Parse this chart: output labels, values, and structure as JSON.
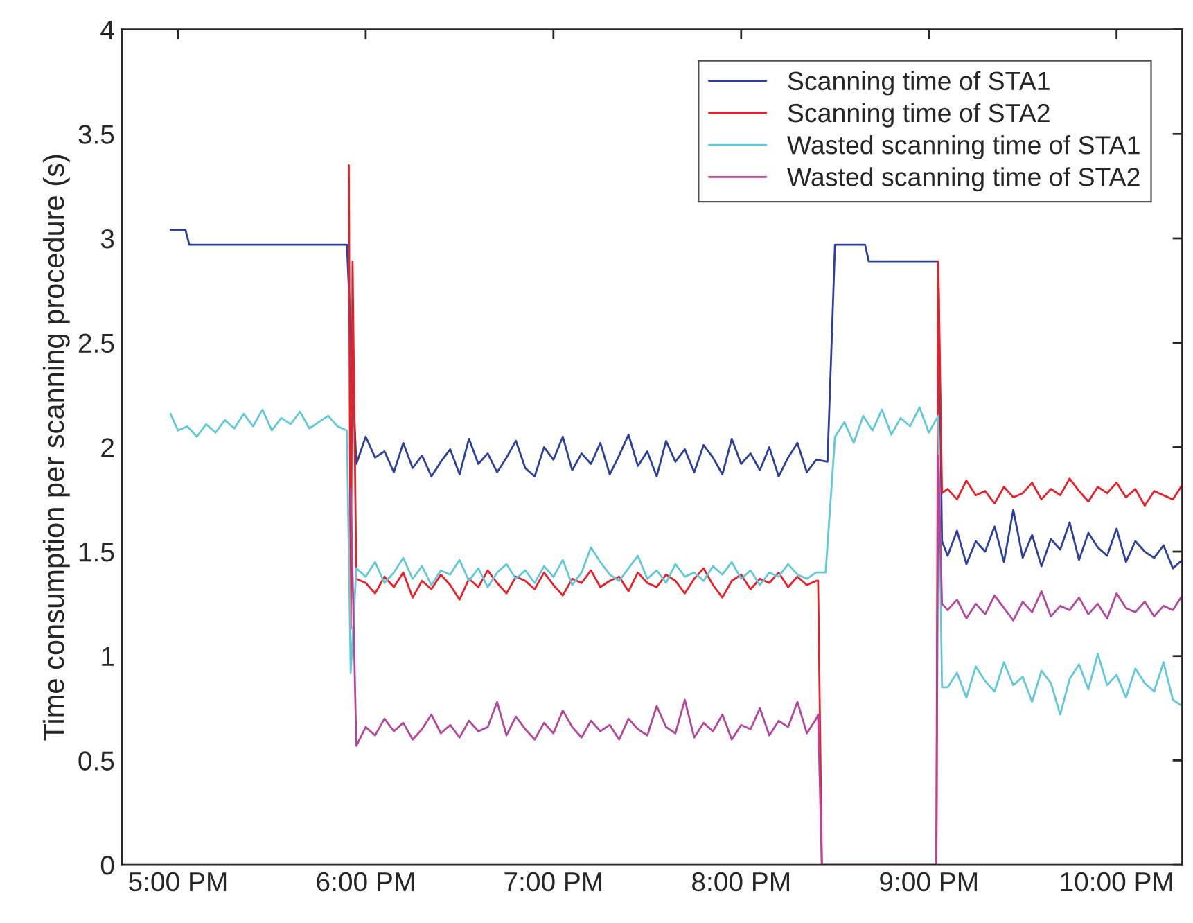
{
  "chart_data": {
    "type": "line",
    "ylabel": "Time consumption per scanning procedure (s)",
    "xlim": [
      16.7,
      22.35
    ],
    "xticks": [
      {
        "value": 17,
        "label": "5:00 PM"
      },
      {
        "value": 18,
        "label": "6:00 PM"
      },
      {
        "value": 19,
        "label": "7:00 PM"
      },
      {
        "value": 20,
        "label": "8:00 PM"
      },
      {
        "value": 21,
        "label": "9:00 PM"
      },
      {
        "value": 22,
        "label": "10:00 PM"
      }
    ],
    "ylim": [
      0,
      4
    ],
    "yticks": [
      0,
      0.5,
      1,
      1.5,
      2,
      2.5,
      3,
      3.5,
      4
    ],
    "grid": false,
    "legend": "top right",
    "line_style": "solid",
    "marker": "none",
    "series": [
      {
        "name": "Scanning time of STA1",
        "color": "#2b3f9e",
        "x": [
          16.96,
          17.04,
          17.06,
          17.9,
          17.95,
          18.0,
          18.05,
          18.1,
          18.15,
          18.2,
          18.25,
          18.3,
          18.35,
          18.4,
          18.45,
          18.5,
          18.55,
          18.6,
          18.65,
          18.7,
          18.75,
          18.8,
          18.85,
          18.9,
          18.95,
          19.0,
          19.05,
          19.1,
          19.15,
          19.2,
          19.25,
          19.3,
          19.35,
          19.4,
          19.45,
          19.5,
          19.55,
          19.6,
          19.65,
          19.7,
          19.75,
          19.8,
          19.85,
          19.9,
          19.95,
          20.0,
          20.05,
          20.1,
          20.15,
          20.2,
          20.25,
          20.3,
          20.35,
          20.4,
          20.46,
          20.5,
          20.66,
          20.68,
          21.05,
          21.07,
          21.1,
          21.15,
          21.2,
          21.25,
          21.3,
          21.35,
          21.4,
          21.45,
          21.5,
          21.55,
          21.6,
          21.65,
          21.7,
          21.75,
          21.8,
          21.85,
          21.9,
          21.95,
          22.0,
          22.05,
          22.1,
          22.15,
          22.2,
          22.25,
          22.3,
          22.35
        ],
        "values": [
          3.04,
          3.04,
          2.97,
          2.97,
          1.92,
          2.05,
          1.95,
          1.98,
          1.88,
          2.02,
          1.9,
          1.96,
          1.86,
          1.93,
          1.99,
          1.87,
          2.04,
          1.92,
          1.97,
          1.88,
          1.95,
          2.03,
          1.9,
          1.86,
          2.0,
          1.94,
          2.05,
          1.89,
          1.97,
          1.92,
          2.02,
          1.87,
          1.96,
          2.06,
          1.91,
          1.98,
          1.86,
          2.03,
          1.93,
          1.99,
          1.88,
          2.01,
          1.95,
          1.87,
          2.04,
          1.92,
          1.97,
          1.89,
          2.0,
          1.86,
          1.95,
          2.02,
          1.88,
          1.94,
          1.93,
          2.97,
          2.97,
          2.89,
          2.89,
          1.55,
          1.48,
          1.6,
          1.44,
          1.55,
          1.5,
          1.62,
          1.45,
          1.7,
          1.47,
          1.58,
          1.43,
          1.56,
          1.51,
          1.64,
          1.46,
          1.59,
          1.52,
          1.48,
          1.61,
          1.45,
          1.55,
          1.5,
          1.47,
          1.53,
          1.42,
          1.46
        ]
      },
      {
        "name": "Scanning time of STA2",
        "color": "#ee1c25",
        "x": [
          17.91,
          17.92,
          17.93,
          17.95,
          18.0,
          18.05,
          18.1,
          18.15,
          18.2,
          18.25,
          18.3,
          18.35,
          18.4,
          18.45,
          18.5,
          18.55,
          18.6,
          18.65,
          18.7,
          18.75,
          18.8,
          18.85,
          18.9,
          18.95,
          19.0,
          19.05,
          19.1,
          19.15,
          19.2,
          19.25,
          19.3,
          19.35,
          19.4,
          19.45,
          19.5,
          19.55,
          19.6,
          19.65,
          19.7,
          19.75,
          19.8,
          19.85,
          19.9,
          19.95,
          20.0,
          20.05,
          20.1,
          20.15,
          20.2,
          20.25,
          20.3,
          20.35,
          20.4,
          20.41,
          20.43,
          21.04,
          21.05,
          21.07,
          21.1,
          21.15,
          21.2,
          21.25,
          21.3,
          21.35,
          21.4,
          21.45,
          21.5,
          21.55,
          21.6,
          21.65,
          21.7,
          21.75,
          21.8,
          21.85,
          21.9,
          21.95,
          22.0,
          22.05,
          22.1,
          22.15,
          22.2,
          22.25,
          22.3,
          22.35
        ],
        "values": [
          3.35,
          1.13,
          2.89,
          1.37,
          1.35,
          1.3,
          1.38,
          1.33,
          1.4,
          1.28,
          1.36,
          1.32,
          1.39,
          1.34,
          1.27,
          1.37,
          1.33,
          1.41,
          1.35,
          1.3,
          1.38,
          1.36,
          1.32,
          1.4,
          1.34,
          1.29,
          1.37,
          1.35,
          1.41,
          1.33,
          1.36,
          1.38,
          1.31,
          1.4,
          1.35,
          1.33,
          1.39,
          1.36,
          1.3,
          1.37,
          1.42,
          1.34,
          1.28,
          1.36,
          1.39,
          1.32,
          1.37,
          1.35,
          1.4,
          1.33,
          1.38,
          1.34,
          1.36,
          1.36,
          0,
          0,
          2.89,
          1.78,
          1.8,
          1.75,
          1.84,
          1.77,
          1.79,
          1.73,
          1.81,
          1.76,
          1.78,
          1.83,
          1.75,
          1.8,
          1.77,
          1.85,
          1.79,
          1.74,
          1.81,
          1.78,
          1.83,
          1.76,
          1.8,
          1.72,
          1.79,
          1.77,
          1.75,
          1.82
        ]
      },
      {
        "name": "Wasted scanning time of STA1",
        "color": "#5fc8dc",
        "x": [
          16.96,
          17.0,
          17.05,
          17.1,
          17.15,
          17.2,
          17.25,
          17.3,
          17.35,
          17.4,
          17.45,
          17.5,
          17.55,
          17.6,
          17.65,
          17.7,
          17.75,
          17.8,
          17.85,
          17.9,
          17.92,
          17.95,
          18.0,
          18.05,
          18.1,
          18.15,
          18.2,
          18.25,
          18.3,
          18.35,
          18.4,
          18.45,
          18.5,
          18.55,
          18.6,
          18.65,
          18.7,
          18.75,
          18.8,
          18.85,
          18.9,
          18.95,
          19.0,
          19.05,
          19.1,
          19.15,
          19.2,
          19.25,
          19.3,
          19.35,
          19.4,
          19.45,
          19.5,
          19.55,
          19.6,
          19.65,
          19.7,
          19.75,
          19.8,
          19.85,
          19.9,
          19.95,
          20.0,
          20.05,
          20.1,
          20.15,
          20.2,
          20.25,
          20.3,
          20.35,
          20.4,
          20.45,
          20.5,
          20.55,
          20.6,
          20.65,
          20.7,
          20.75,
          20.8,
          20.85,
          20.9,
          20.95,
          21.0,
          21.05,
          21.07,
          21.1,
          21.15,
          21.2,
          21.25,
          21.3,
          21.35,
          21.4,
          21.45,
          21.5,
          21.55,
          21.6,
          21.65,
          21.7,
          21.75,
          21.8,
          21.85,
          21.9,
          21.95,
          22.0,
          22.05,
          22.1,
          22.15,
          22.2,
          22.25,
          22.3,
          22.35
        ],
        "values": [
          2.16,
          2.08,
          2.1,
          2.05,
          2.11,
          2.07,
          2.13,
          2.09,
          2.16,
          2.1,
          2.18,
          2.08,
          2.14,
          2.11,
          2.17,
          2.09,
          2.12,
          2.15,
          2.1,
          2.08,
          0.92,
          1.42,
          1.38,
          1.45,
          1.35,
          1.4,
          1.47,
          1.37,
          1.43,
          1.34,
          1.41,
          1.39,
          1.46,
          1.36,
          1.42,
          1.33,
          1.4,
          1.44,
          1.37,
          1.41,
          1.35,
          1.43,
          1.38,
          1.46,
          1.34,
          1.4,
          1.52,
          1.45,
          1.39,
          1.36,
          1.42,
          1.48,
          1.37,
          1.41,
          1.35,
          1.44,
          1.38,
          1.4,
          1.36,
          1.43,
          1.39,
          1.45,
          1.37,
          1.41,
          1.34,
          1.4,
          1.38,
          1.44,
          1.39,
          1.37,
          1.4,
          1.4,
          2.05,
          2.12,
          2.02,
          2.15,
          2.08,
          2.18,
          2.06,
          2.14,
          2.1,
          2.19,
          2.07,
          2.15,
          0.85,
          0.85,
          0.92,
          0.8,
          0.95,
          0.88,
          0.83,
          0.97,
          0.86,
          0.9,
          0.78,
          0.93,
          0.87,
          0.72,
          0.89,
          0.96,
          0.84,
          1.01,
          0.86,
          0.91,
          0.8,
          0.94,
          0.87,
          0.83,
          0.97,
          0.79,
          0.76
        ]
      },
      {
        "name": "Wasted scanning time of STA2",
        "color": "#b5449f",
        "x": [
          17.92,
          17.95,
          18.0,
          18.05,
          18.1,
          18.15,
          18.2,
          18.25,
          18.3,
          18.35,
          18.4,
          18.45,
          18.5,
          18.55,
          18.6,
          18.65,
          18.7,
          18.75,
          18.8,
          18.85,
          18.9,
          18.95,
          19.0,
          19.05,
          19.1,
          19.15,
          19.2,
          19.25,
          19.3,
          19.35,
          19.4,
          19.45,
          19.5,
          19.55,
          19.6,
          19.65,
          19.7,
          19.75,
          19.8,
          19.85,
          19.9,
          19.95,
          20.0,
          20.05,
          20.1,
          20.15,
          20.2,
          20.25,
          20.3,
          20.35,
          20.4,
          20.41,
          20.43,
          21.04,
          21.05,
          21.07,
          21.1,
          21.15,
          21.2,
          21.25,
          21.3,
          21.35,
          21.4,
          21.45,
          21.5,
          21.55,
          21.6,
          21.65,
          21.7,
          21.75,
          21.8,
          21.85,
          21.9,
          21.95,
          22.0,
          22.05,
          22.1,
          22.15,
          22.2,
          22.25,
          22.3,
          22.35
        ],
        "values": [
          1.8,
          0.57,
          0.66,
          0.62,
          0.7,
          0.64,
          0.68,
          0.6,
          0.65,
          0.72,
          0.63,
          0.67,
          0.61,
          0.69,
          0.64,
          0.66,
          0.78,
          0.62,
          0.71,
          0.65,
          0.6,
          0.68,
          0.63,
          0.74,
          0.66,
          0.61,
          0.69,
          0.64,
          0.67,
          0.6,
          0.7,
          0.65,
          0.62,
          0.76,
          0.66,
          0.63,
          0.79,
          0.61,
          0.68,
          0.64,
          0.72,
          0.6,
          0.67,
          0.65,
          0.75,
          0.62,
          0.69,
          0.66,
          0.78,
          0.63,
          0.7,
          0.72,
          0,
          0,
          1.96,
          1.25,
          1.22,
          1.27,
          1.18,
          1.25,
          1.2,
          1.29,
          1.23,
          1.17,
          1.26,
          1.21,
          1.31,
          1.19,
          1.24,
          1.22,
          1.28,
          1.2,
          1.25,
          1.18,
          1.3,
          1.23,
          1.21,
          1.26,
          1.19,
          1.24,
          1.22,
          1.29
        ]
      }
    ]
  }
}
